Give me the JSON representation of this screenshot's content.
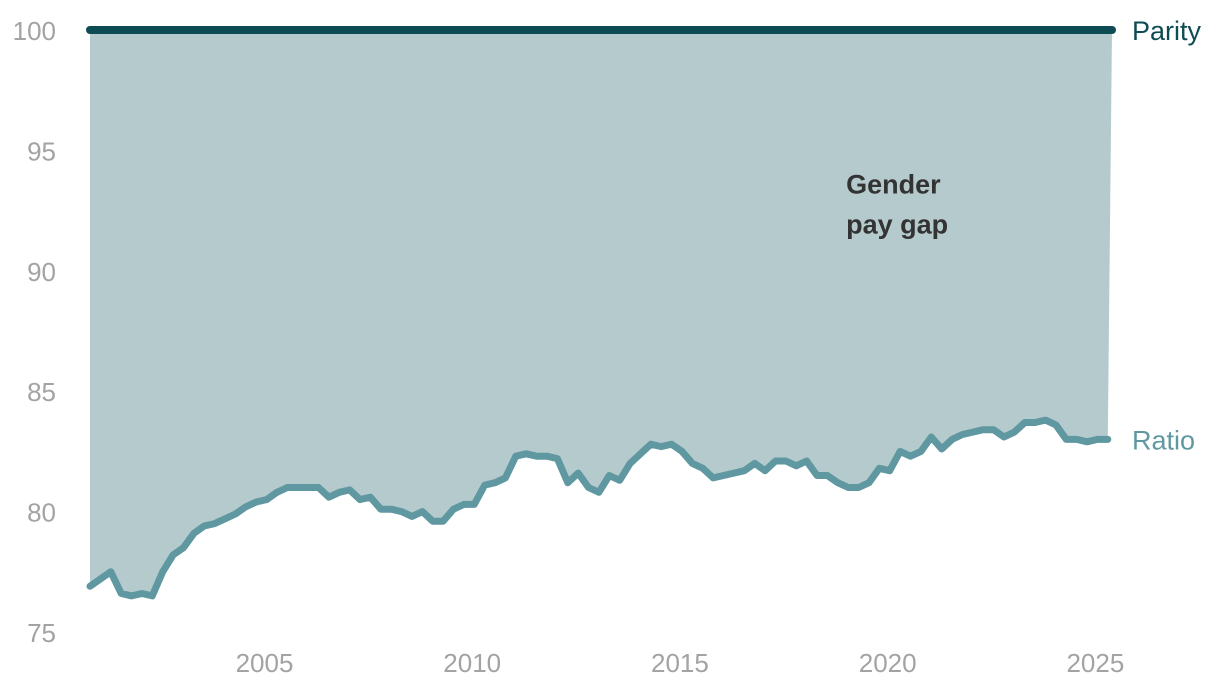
{
  "chart_data": {
    "type": "area",
    "title": "",
    "xlabel": "",
    "ylabel": "",
    "xlim": [
      2000.8,
      2025.4
    ],
    "ylim": [
      75,
      100
    ],
    "grid": false,
    "legend": "none",
    "x_ticks": [
      {
        "value": 2005,
        "label": "2005"
      },
      {
        "value": 2010,
        "label": "2010"
      },
      {
        "value": 2015,
        "label": "2015"
      },
      {
        "value": 2020,
        "label": "2020"
      },
      {
        "value": 2025,
        "label": "2025"
      }
    ],
    "y_ticks": [
      {
        "value": 100,
        "label": "100"
      },
      {
        "value": 95,
        "label": "95"
      },
      {
        "value": 90,
        "label": "90"
      },
      {
        "value": 85,
        "label": "85"
      },
      {
        "value": 80,
        "label": "80"
      },
      {
        "value": 75,
        "label": "75"
      }
    ],
    "annotation": {
      "line1": "Gender",
      "line2": "pay gap",
      "x": 2019.0,
      "y": 93.2
    },
    "series": [
      {
        "name": "Parity",
        "color": "#0e4c53",
        "x": [
          2000.8,
          2025.4
        ],
        "y": [
          100,
          100
        ]
      },
      {
        "name": "Ratio",
        "color": "#5f98a0",
        "x": [
          2000.8,
          2001.05,
          2001.3,
          2001.55,
          2001.8,
          2002.05,
          2002.3,
          2002.55,
          2002.8,
          2003.05,
          2003.3,
          2003.55,
          2003.8,
          2004.05,
          2004.3,
          2004.55,
          2004.8,
          2005.05,
          2005.3,
          2005.55,
          2005.8,
          2006.05,
          2006.3,
          2006.55,
          2006.8,
          2007.05,
          2007.3,
          2007.55,
          2007.8,
          2008.05,
          2008.3,
          2008.55,
          2008.8,
          2009.05,
          2009.3,
          2009.55,
          2009.8,
          2010.05,
          2010.3,
          2010.55,
          2010.8,
          2011.05,
          2011.3,
          2011.55,
          2011.8,
          2012.05,
          2012.3,
          2012.55,
          2012.8,
          2013.05,
          2013.3,
          2013.55,
          2013.8,
          2014.05,
          2014.3,
          2014.55,
          2014.8,
          2015.05,
          2015.3,
          2015.55,
          2015.8,
          2016.05,
          2016.3,
          2016.55,
          2016.8,
          2017.05,
          2017.3,
          2017.55,
          2017.8,
          2018.05,
          2018.3,
          2018.55,
          2018.8,
          2019.05,
          2019.3,
          2019.55,
          2019.8,
          2020.05,
          2020.3,
          2020.55,
          2020.8,
          2021.05,
          2021.3,
          2021.55,
          2021.8,
          2022.05,
          2022.3,
          2022.55,
          2022.8,
          2023.05,
          2023.3,
          2023.55,
          2023.8,
          2024.05,
          2024.3,
          2024.55,
          2024.8,
          2025.05,
          2025.3
        ],
        "y": [
          76.9,
          77.2,
          77.5,
          76.6,
          76.5,
          76.6,
          76.5,
          77.5,
          78.2,
          78.5,
          79.1,
          79.4,
          79.5,
          79.7,
          79.9,
          80.2,
          80.4,
          80.5,
          80.8,
          81.0,
          81.0,
          81.0,
          81.0,
          80.6,
          80.8,
          80.9,
          80.5,
          80.6,
          80.1,
          80.1,
          80.0,
          79.8,
          80.0,
          79.6,
          79.6,
          80.1,
          80.3,
          80.3,
          81.1,
          81.2,
          81.4,
          82.3,
          82.4,
          82.3,
          82.3,
          82.2,
          81.2,
          81.6,
          81.0,
          80.8,
          81.5,
          81.3,
          82.0,
          82.4,
          82.8,
          82.7,
          82.8,
          82.5,
          82.0,
          81.8,
          81.4,
          81.5,
          81.6,
          81.7,
          82.0,
          81.7,
          82.1,
          82.1,
          81.9,
          82.1,
          81.5,
          81.5,
          81.2,
          81.0,
          81.0,
          81.2,
          81.8,
          81.7,
          82.5,
          82.3,
          82.5,
          83.1,
          82.6,
          83.0,
          83.2,
          83.3,
          83.4,
          83.4,
          83.1,
          83.3,
          83.7,
          83.7,
          83.8,
          83.6,
          83.0,
          83.0,
          82.9,
          83.0,
          83.0
        ]
      }
    ],
    "colors": {
      "gap_fill": "#b5cacd",
      "tick_text": "#a3a3a3",
      "annotation_text": "#333333"
    }
  }
}
